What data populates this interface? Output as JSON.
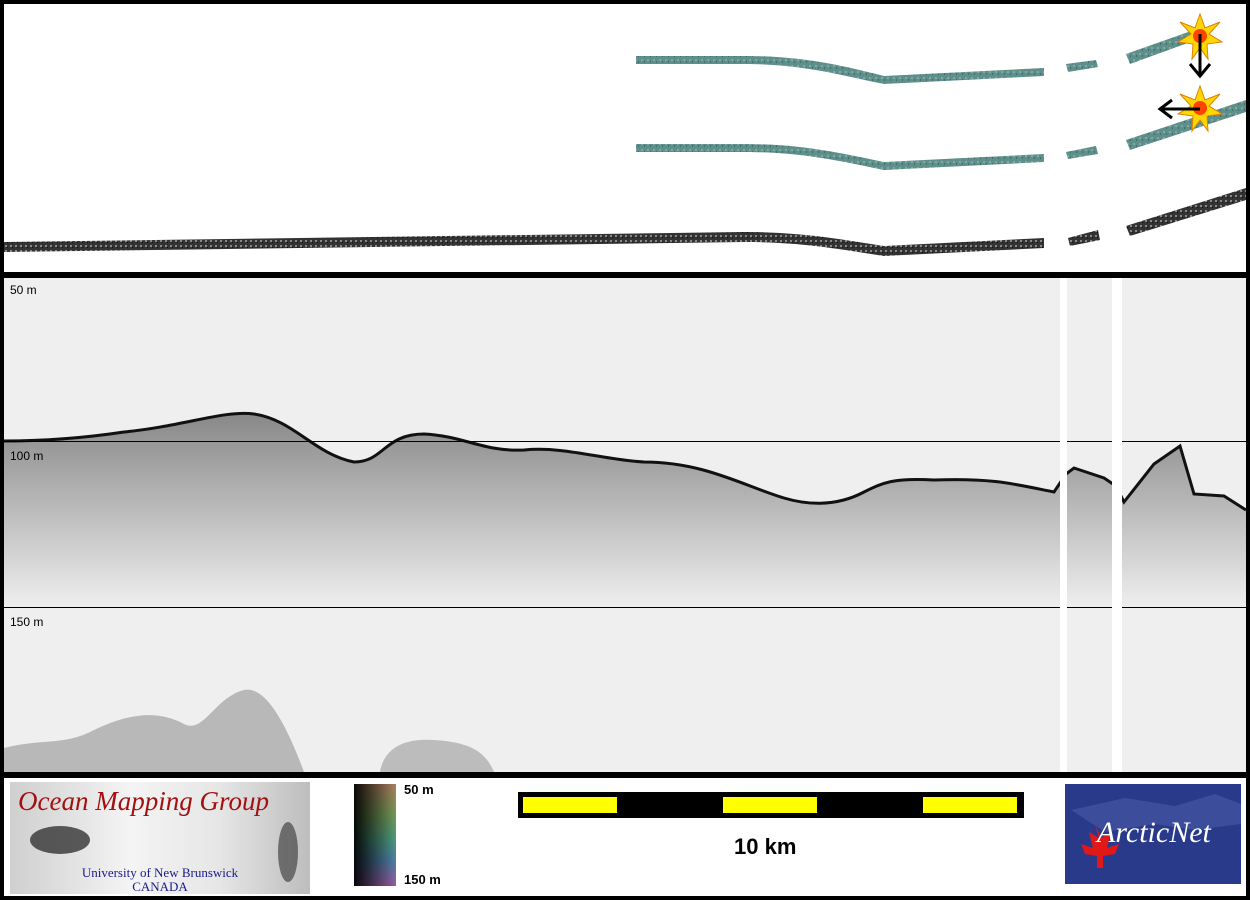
{
  "echogram": {
    "depth_labels": [
      "50 m",
      "100 m",
      "150 m"
    ]
  },
  "footer": {
    "omg_title": "Ocean Mapping Group",
    "omg_subtitle_line1": "University of New Brunswick",
    "omg_subtitle_line2": "CANADA",
    "colorbar_top": "50 m",
    "colorbar_bottom": "150 m",
    "scale_label": "10 km",
    "arcticnet_text": "ArcticNet"
  },
  "colors": {
    "swath": "#5f8f8a",
    "backscatter": "#222222",
    "seafloor": "#111111",
    "scalebar_yellow": "#ffff00",
    "omg_red": "#a31010",
    "arcticnet_blue": "#2a3a8a"
  }
}
